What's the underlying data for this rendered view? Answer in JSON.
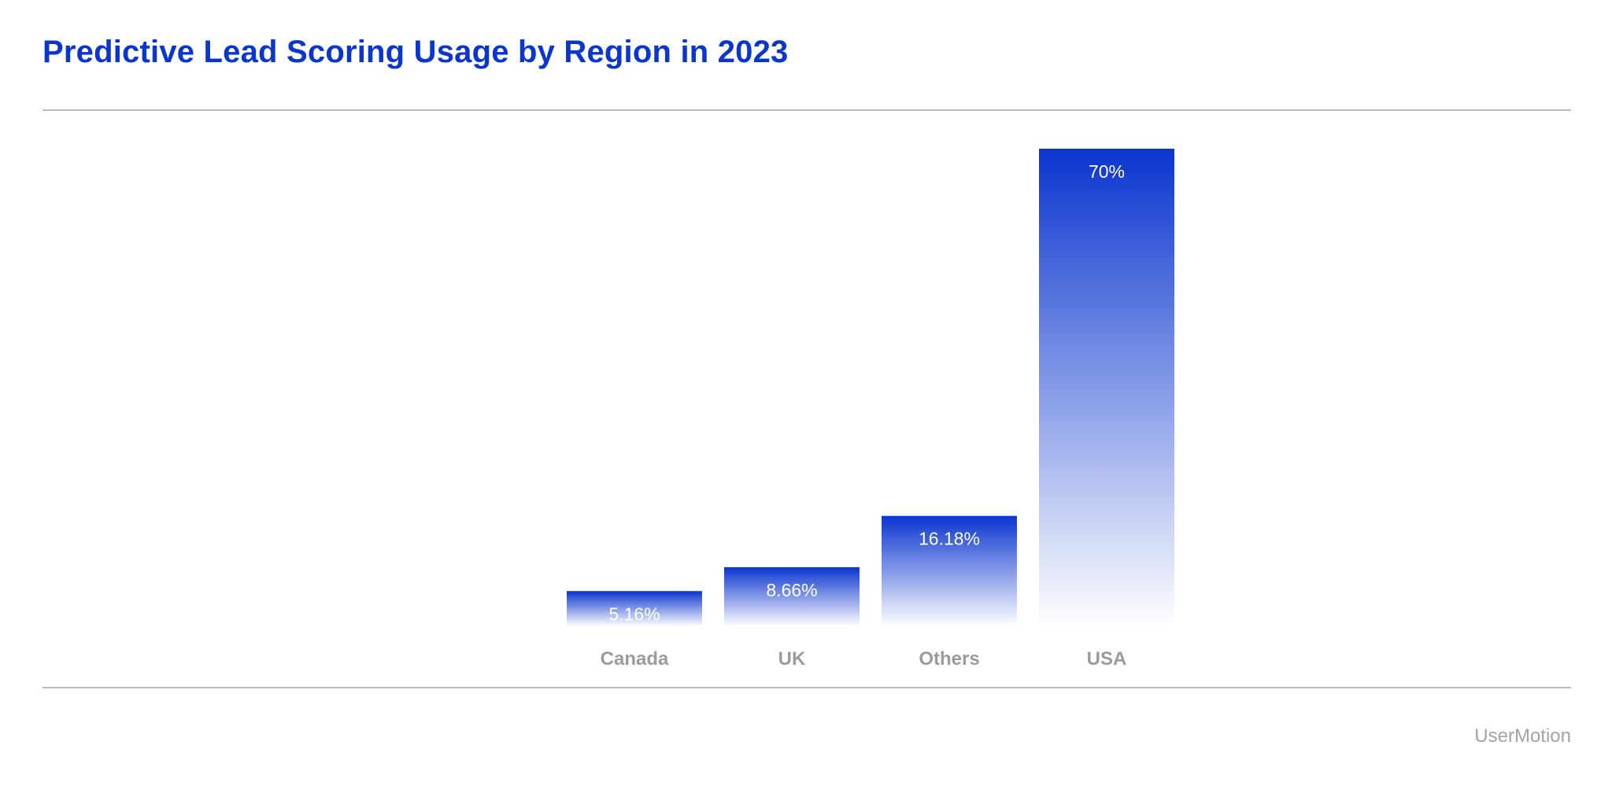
{
  "chart_data": {
    "type": "bar",
    "title": "Predictive Lead Scoring Usage by Region in 2023",
    "categories": [
      "Canada",
      "UK",
      "Others",
      "USA"
    ],
    "values": [
      5.16,
      8.66,
      16.18,
      70
    ],
    "value_labels": [
      "5.16%",
      "8.66%",
      "16.18%",
      "70%"
    ],
    "unit": "%",
    "xlabel": "",
    "ylabel": "",
    "ylim": [
      0,
      70
    ],
    "grid": false,
    "legend": "none"
  },
  "footer": {
    "brand": "UserMotion"
  },
  "colors": {
    "title": "#0a35cf",
    "bar_top": "#0a35cf",
    "bar_bottom": "#ffffff",
    "category_label": "#9b9b9b",
    "brand": "#a3a3a3",
    "rule": "#bdbdbd"
  }
}
